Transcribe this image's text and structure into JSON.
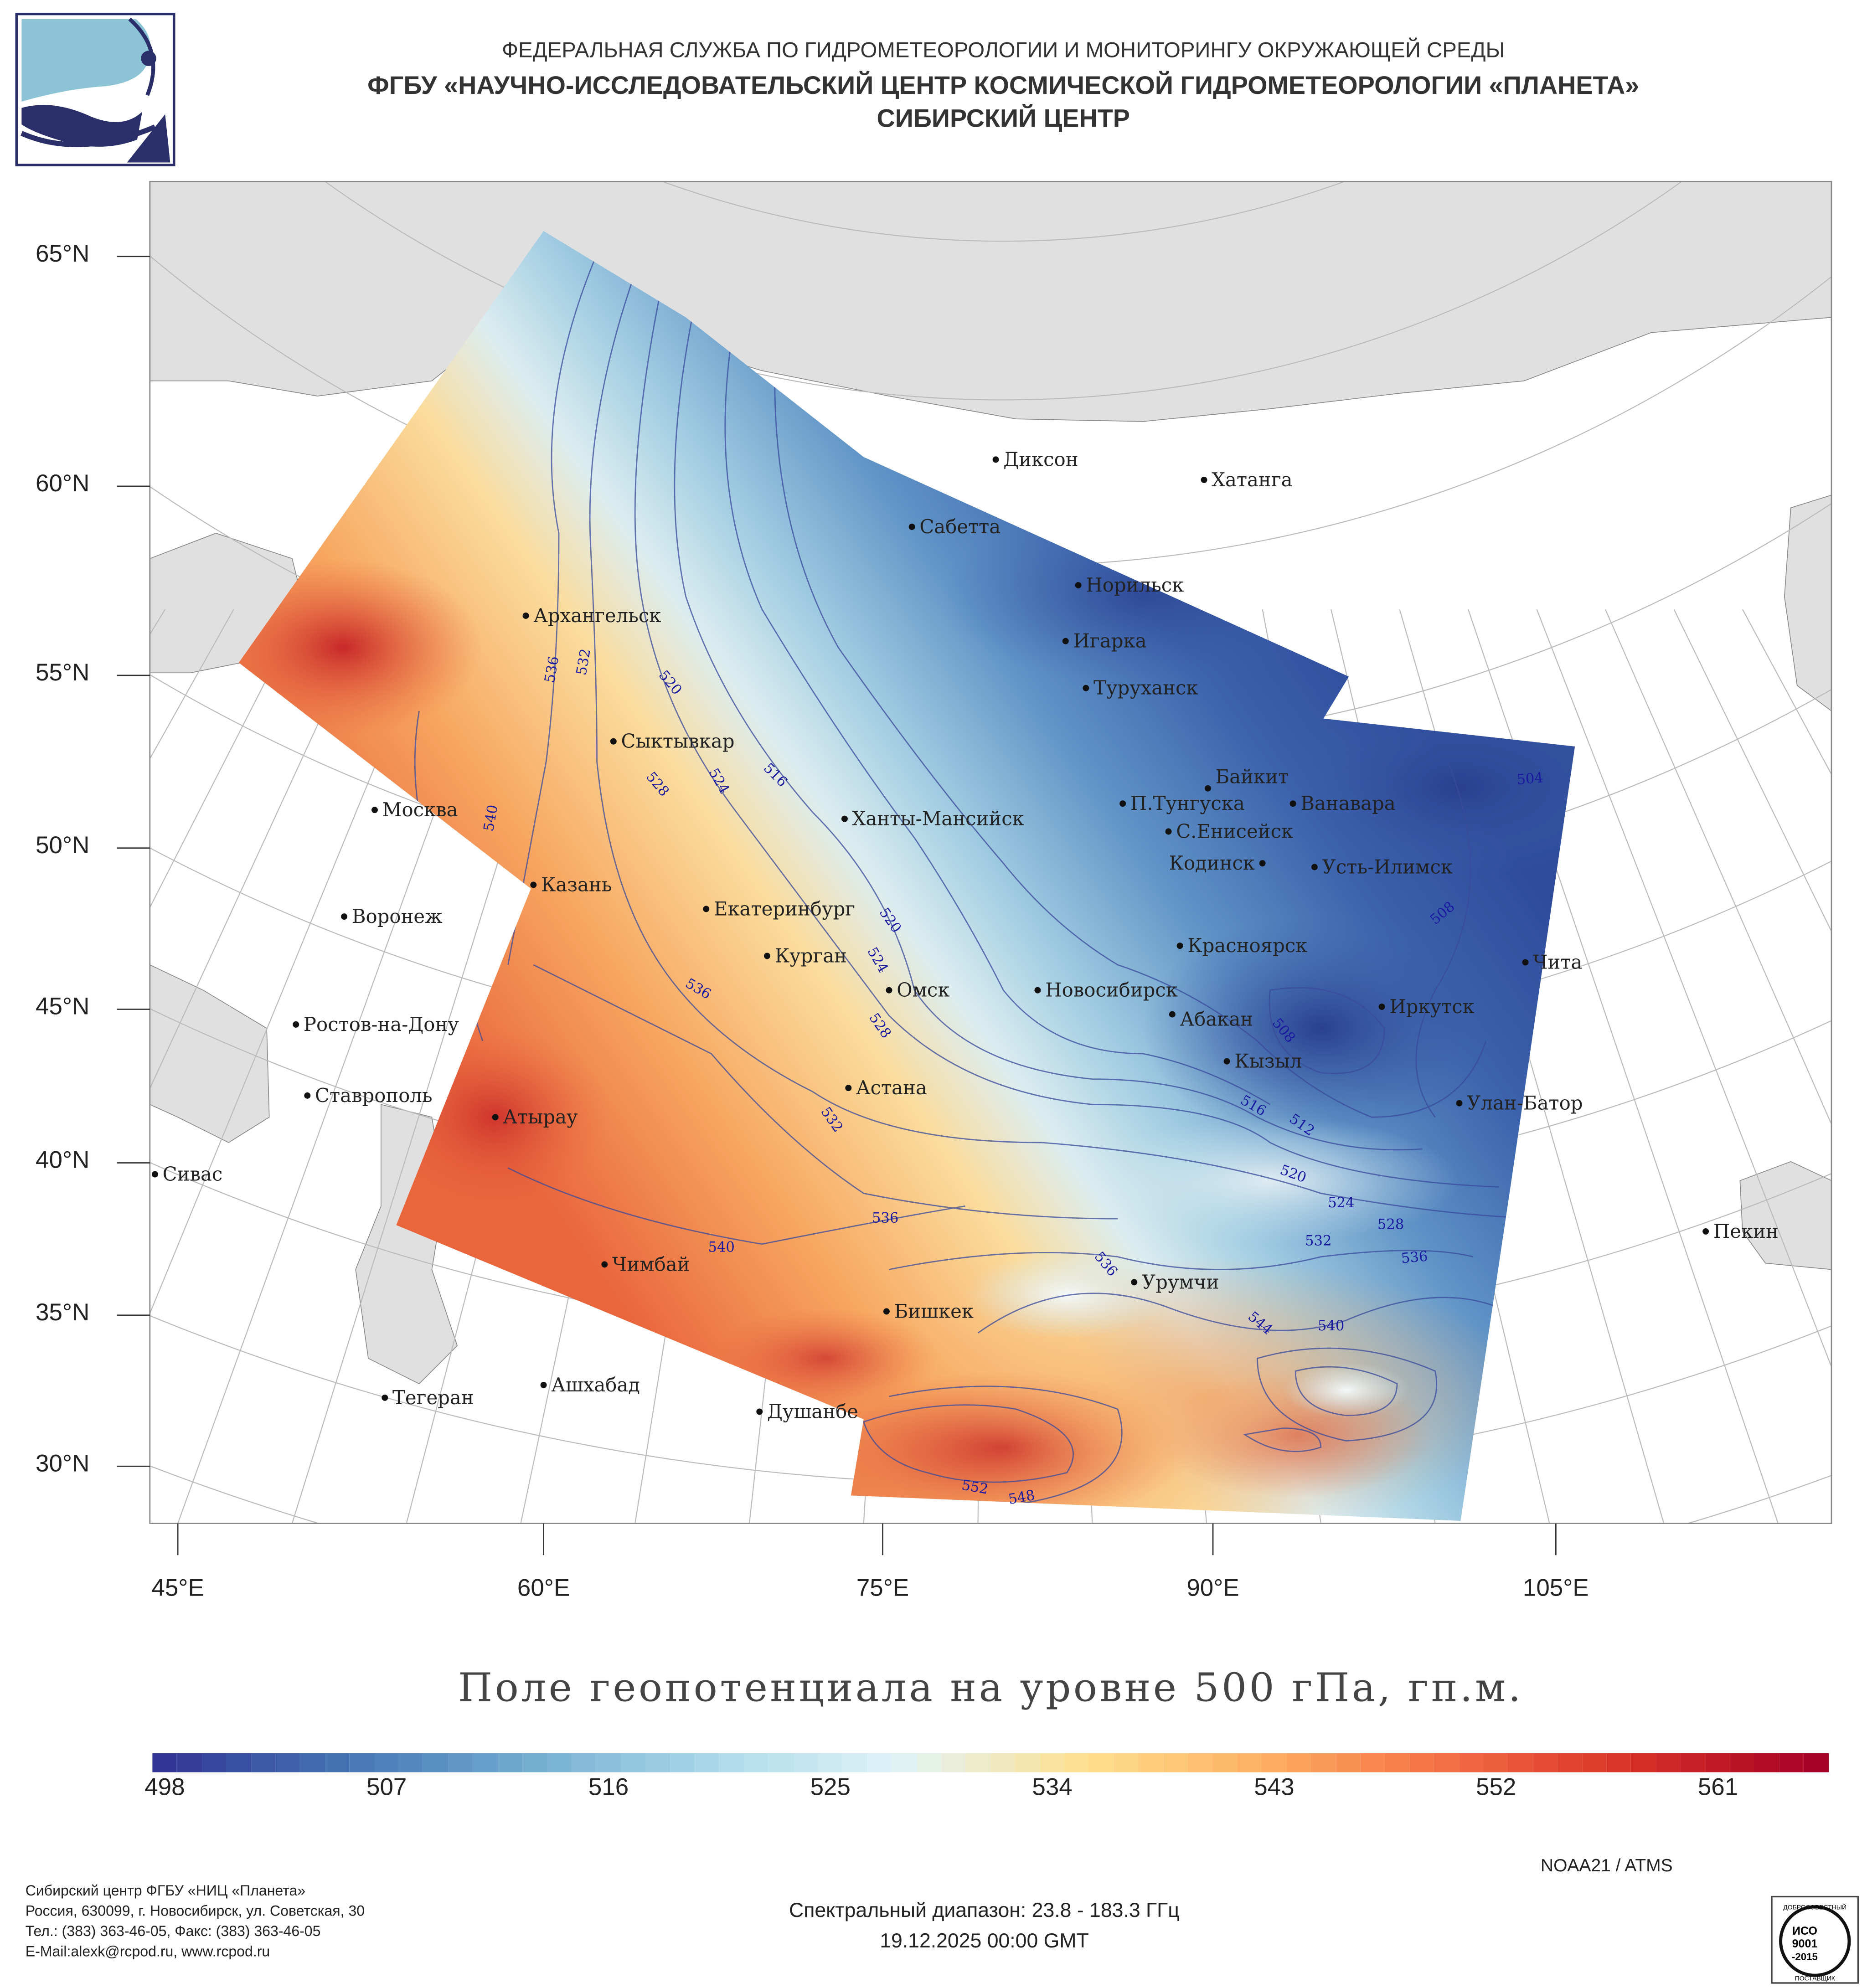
{
  "header": {
    "line1": "ФЕДЕРАЛЬНАЯ СЛУЖБА ПО ГИДРОМЕТЕОРОЛОГИИ И МОНИТОРИНГУ ОКРУЖАЮЩЕЙ СРЕДЫ",
    "line2": "ФГБУ «НАУЧНО-ИССЛЕДОВАТЕЛЬСКИЙ ЦЕНТР КОСМИЧЕСКОЙ ГИДРОМЕТЕОРОЛОГИИ «ПЛАНЕТА»",
    "line3": "СИБИРСКИЙ ЦЕНТР"
  },
  "map": {
    "lat_labels": [
      "65°N",
      "60°N",
      "55°N",
      "50°N",
      "45°N",
      "40°N",
      "35°N",
      "30°N"
    ],
    "lon_labels": [
      "45°E",
      "60°E",
      "75°E",
      "90°E",
      "105°E"
    ],
    "cities": [
      "Диксон",
      "Хатанга",
      "Сабетта",
      "Норильск",
      "Архангельск",
      "Игарка",
      "Туруханск",
      "Сыктывкар",
      "Байкит",
      "П.Тунгуска",
      "Ванавара",
      "Москва",
      "Ханты-Мансийск",
      "С.Енисейск",
      "Кодинск",
      "Усть-Илимск",
      "Казань",
      "Екатеринбург",
      "Воронеж",
      "Красноярск",
      "Курган",
      "Чита",
      "Омск",
      "Новосибирск",
      "Иркутск",
      "Абакан",
      "Ростов-на-Дону",
      "Кызыл",
      "Астана",
      "Ставрополь",
      "Улан-Батор",
      "Атырау",
      "Сивас",
      "Пекин",
      "Чимбай",
      "Урумчи",
      "Бишкек",
      "Ашхабад",
      "Тегеран",
      "Душанбе"
    ],
    "contour_labels": [
      "536",
      "532",
      "520",
      "528",
      "524",
      "516",
      "540",
      "520",
      "524",
      "536",
      "528",
      "532",
      "508",
      "516",
      "512",
      "520",
      "524",
      "528",
      "532",
      "536",
      "536",
      "540",
      "536",
      "544",
      "540",
      "552",
      "548",
      "504",
      "508"
    ]
  },
  "title": "Поле геопотенциала на уровне 500 гПа, гп.м.",
  "colorbar": {
    "min": 498,
    "max": 566,
    "ticks": [
      "498",
      "507",
      "516",
      "525",
      "534",
      "543",
      "552",
      "561"
    ],
    "colors": [
      "#313695",
      "#4575b4",
      "#74add1",
      "#abd9e9",
      "#e0f3f8",
      "#fee090",
      "#fdae61",
      "#f46d43",
      "#d73027",
      "#a50026"
    ]
  },
  "instrument": "NOAA21 / ATMS",
  "spectral": "Спектральный диапазон: 23.8 - 183.3 ГГц",
  "datetime": "19.12.2025 00:00 GMT",
  "footer": {
    "org": "Сибирский центр ФГБУ «НИЦ «Планета»",
    "address": "Россия, 630099, г. Новосибирск, ул. Советская, 30",
    "phone": "Тел.: (383) 363-46-05, Факс: (383) 363-46-05",
    "email": "E-Mail:alexk@rcpod.ru, www.rcpod.ru"
  },
  "iso_stamp": {
    "top": "ДОБРОСОВЕСТНЫЙ",
    "center": "ИСО 9001 -2015",
    "bottom": "ПОСТАВЩИК"
  }
}
